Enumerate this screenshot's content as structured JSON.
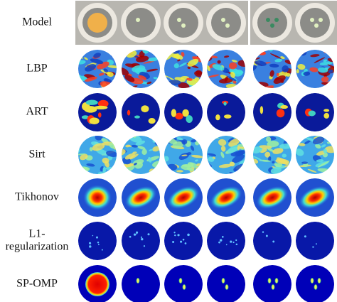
{
  "figure": {
    "rows": [
      {
        "label": "Model"
      },
      {
        "label": "LBP"
      },
      {
        "label": "ART"
      },
      {
        "label": "Sirt"
      },
      {
        "label": "Tikhonov"
      },
      {
        "label": [
          "L1-",
          "regularization"
        ]
      },
      {
        "label": "SP-OMP"
      }
    ]
  }
}
